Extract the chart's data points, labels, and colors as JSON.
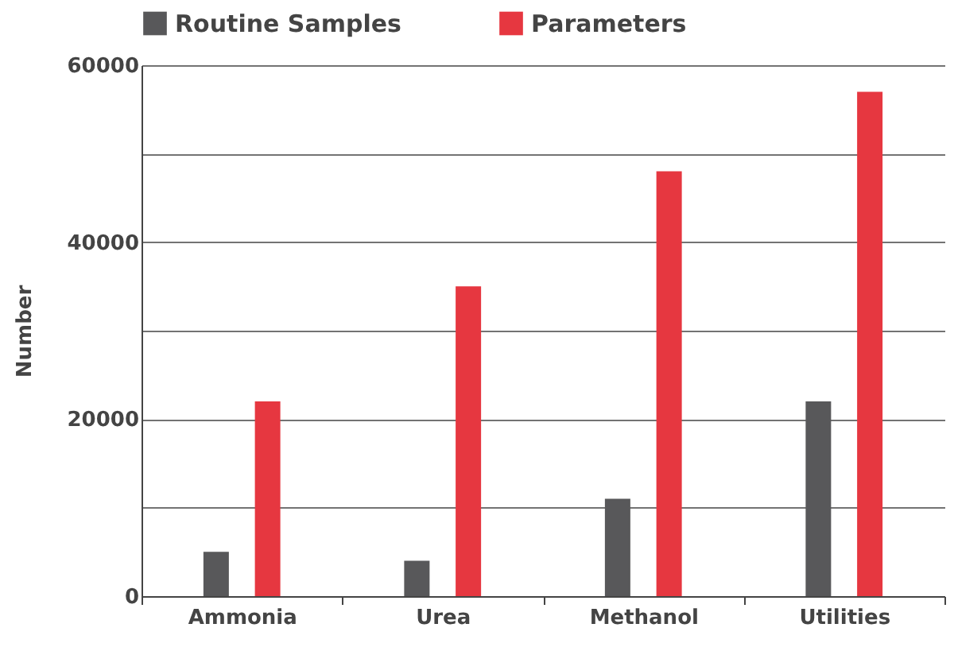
{
  "chart_data": {
    "type": "bar",
    "categories": [
      "Ammonia",
      "Urea",
      "Methanol",
      "Utilities"
    ],
    "series": [
      {
        "name": "Routine Samples",
        "color": "#58585a",
        "values": [
          5000,
          4000,
          11000,
          22000
        ]
      },
      {
        "name": "Parameters",
        "color": "#e63740",
        "values": [
          22000,
          35000,
          48000,
          57000
        ]
      }
    ],
    "ylabel": "Number",
    "ylim": [
      0,
      60000
    ],
    "yticks": [
      0,
      {
        "value": 10000,
        "label": null
      },
      20000,
      {
        "value": 30000,
        "label": null
      },
      40000,
      {
        "value": 50000,
        "label": null
      },
      60000
    ],
    "grid": "y",
    "legend": "top"
  }
}
